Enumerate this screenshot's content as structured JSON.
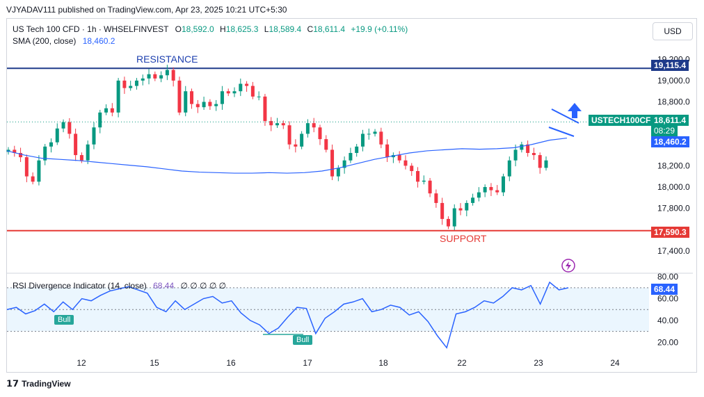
{
  "header": {
    "publisher_line": "VJYADAV111 published on TradingView.com, Apr 23, 2025 10:21 UTC+5:30"
  },
  "legend": {
    "symbol": "US Tech 100 CFD · 1h · WHSELFINVEST",
    "o_label": "O",
    "o_value": "18,592.0",
    "h_label": "H",
    "h_value": "18,625.3",
    "l_label": "L",
    "l_value": "18,589.4",
    "c_label": "C",
    "c_value": "18,611.4",
    "change": "+19.9 (+0.11%)",
    "sma_label": "SMA (200, close)",
    "sma_value": "18,460.2"
  },
  "currency": "USD",
  "annotations": {
    "resistance": "RESISTANCE",
    "support": "SUPPORT",
    "bull_1": "Bull",
    "bull_2": "Bull"
  },
  "price_tags": {
    "resistance": "19,115.4",
    "symbol_name": "USTECH100CFD",
    "last_price": "18,611.4",
    "countdown": "08:29",
    "sma": "18,460.2",
    "support": "17,590.3",
    "rsi": "68.44"
  },
  "rsi_legend": {
    "label": "RSI Divergence Indicator (14, close)",
    "value": "68.44",
    "zeros": "∅ ∅ ∅ ∅ ∅"
  },
  "footer": {
    "brand": "TradingView"
  },
  "colors": {
    "up": "#089981",
    "down": "#f23645",
    "sma": "#2962ff",
    "resistance": "#1e3a8a",
    "support": "#e53935",
    "rsi": "#2962ff",
    "bull": "#26a69a"
  },
  "chart_data": [
    {
      "type": "candlestick",
      "title": "US Tech 100 CFD · 1h · WHSELFINVEST",
      "x_ticks": [
        "12",
        "15",
        "16",
        "17",
        "18",
        "22",
        "23",
        "24"
      ],
      "y_ticks": [
        "19,200.0",
        "19,000.0",
        "18,800.0",
        "18,200.0",
        "18,000.0",
        "17,800.0",
        "17,400.0"
      ],
      "ylim": [
        17340,
        19300
      ],
      "horizontal_levels": [
        {
          "name": "RESISTANCE",
          "value": 19115.4
        },
        {
          "name": "SUPPORT",
          "value": 17590.3
        }
      ],
      "series": [
        {
          "name": "price",
          "values": [
            18350,
            18320,
            18280,
            18100,
            18050,
            18250,
            18380,
            18420,
            18550,
            18610,
            18500,
            18300,
            18250,
            18400,
            18560,
            18700,
            18740,
            18700,
            19000,
            18930,
            18950,
            19000,
            19020,
            19060,
            19020,
            19050,
            19100,
            19000,
            18700,
            18900,
            18780,
            18750,
            18800,
            18760,
            18780,
            18900,
            18880,
            18900,
            18970,
            18950,
            18850,
            18850,
            18620,
            18580,
            18600,
            18580,
            18400,
            18380,
            18500,
            18600,
            18560,
            18450,
            18350,
            18100,
            18180,
            18250,
            18320,
            18380,
            18500,
            18500,
            18520,
            18400,
            18280,
            18300,
            18250,
            18200,
            18150,
            18050,
            18060,
            17940,
            17850,
            17700,
            17630,
            17800,
            17780,
            17850,
            17900,
            17950,
            18000,
            17970,
            17950,
            18100,
            18250,
            18350,
            18400,
            18320,
            18300,
            18180,
            18250
          ]
        },
        {
          "name": "SMA (200, close)",
          "values": [
            18340,
            18300,
            18270,
            18260,
            18250,
            18235,
            18220,
            18205,
            18190,
            18170,
            18150,
            18140,
            18135,
            18130,
            18130,
            18135,
            18130,
            18135,
            18150,
            18180,
            18220,
            18260,
            18290,
            18320,
            18340,
            18350,
            18360,
            18355,
            18360,
            18370,
            18400,
            18440,
            18460
          ]
        }
      ]
    },
    {
      "type": "line",
      "title": "RSI Divergence Indicator (14, close)",
      "y_ticks": [
        "80.00",
        "60.00",
        "40.00",
        "20.00"
      ],
      "ylim": [
        10,
        82
      ],
      "series": [
        {
          "name": "RSI",
          "values": [
            50,
            52,
            46,
            49,
            55,
            48,
            57,
            50,
            60,
            58,
            63,
            67,
            69,
            71,
            68,
            65,
            52,
            48,
            58,
            50,
            55,
            60,
            62,
            56,
            58,
            47,
            40,
            36,
            28,
            33,
            43,
            52,
            51,
            28,
            42,
            48,
            55,
            57,
            60,
            48,
            50,
            54,
            52,
            45,
            48,
            39,
            26,
            15,
            46,
            48,
            52,
            58,
            56,
            62,
            70,
            68,
            72,
            55,
            75,
            68,
            70
          ]
        }
      ]
    }
  ]
}
